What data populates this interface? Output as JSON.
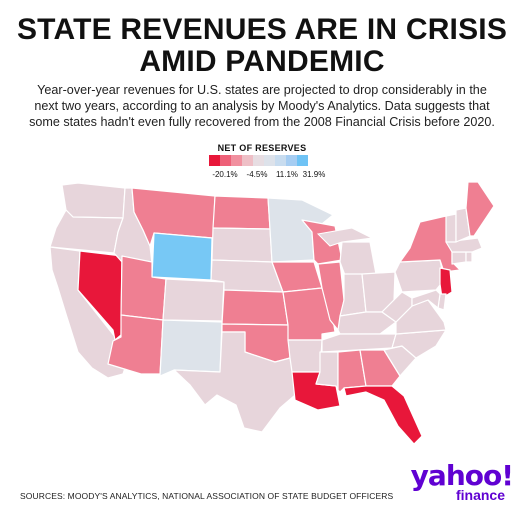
{
  "header": {
    "title_line1": "STATE REVENUES ARE IN CRISIS",
    "title_line2": "AMID PANDEMIC",
    "subtitle_line1": "Year-over-year revenues for U.S. states are projected to drop considerably in the",
    "subtitle_line2": "next two years, according to an analysis by Moody's Analytics. Data suggests that",
    "subtitle_line3": "some states hadn't even fully recovered from the 2008 Financial Crisis before 2020."
  },
  "legend": {
    "title": "NET OF RESERVES",
    "swatches": [
      "#e8173a",
      "#ee6078",
      "#f1909f",
      "#eebfc6",
      "#e7dde2",
      "#dde2ea",
      "#c8dcef",
      "#a6cdf2",
      "#6fc3f5"
    ],
    "labels": [
      "-20.1%",
      "-4.5%",
      "11.1%",
      "31.9%"
    ]
  },
  "colors": {
    "darkred": "#e8173a",
    "mid": "#ef7f92",
    "pink": "#e9a9b4",
    "light": "#e7d5db",
    "grey": "#dde3ea",
    "blue": "#77c8f5",
    "border": "#ffffff"
  },
  "states": [
    {
      "name": "Washington",
      "level": "light"
    },
    {
      "name": "Oregon",
      "level": "light"
    },
    {
      "name": "California",
      "level": "light"
    },
    {
      "name": "Nevada",
      "level": "darkred"
    },
    {
      "name": "Idaho",
      "level": "light"
    },
    {
      "name": "Montana",
      "level": "mid"
    },
    {
      "name": "Wyoming",
      "level": "blue"
    },
    {
      "name": "Utah",
      "level": "mid"
    },
    {
      "name": "Arizona",
      "level": "mid"
    },
    {
      "name": "Colorado",
      "level": "light"
    },
    {
      "name": "New Mexico",
      "level": "grey"
    },
    {
      "name": "North Dakota",
      "level": "mid"
    },
    {
      "name": "South Dakota",
      "level": "light"
    },
    {
      "name": "Nebraska",
      "level": "light"
    },
    {
      "name": "Kansas",
      "level": "mid"
    },
    {
      "name": "Oklahoma",
      "level": "mid"
    },
    {
      "name": "Texas",
      "level": "light"
    },
    {
      "name": "Minnesota",
      "level": "grey"
    },
    {
      "name": "Iowa",
      "level": "mid"
    },
    {
      "name": "Missouri",
      "level": "mid"
    },
    {
      "name": "Arkansas",
      "level": "light"
    },
    {
      "name": "Louisiana",
      "level": "darkred"
    },
    {
      "name": "Wisconsin",
      "level": "mid"
    },
    {
      "name": "Illinois",
      "level": "mid"
    },
    {
      "name": "Michigan",
      "level": "light"
    },
    {
      "name": "Indiana",
      "level": "light"
    },
    {
      "name": "Ohio",
      "level": "light"
    },
    {
      "name": "Kentucky",
      "level": "light"
    },
    {
      "name": "Tennessee",
      "level": "light"
    },
    {
      "name": "Mississippi",
      "level": "light"
    },
    {
      "name": "Alabama",
      "level": "mid"
    },
    {
      "name": "Georgia",
      "level": "mid"
    },
    {
      "name": "Florida",
      "level": "darkred"
    },
    {
      "name": "South Carolina",
      "level": "light"
    },
    {
      "name": "North Carolina",
      "level": "light"
    },
    {
      "name": "Virginia",
      "level": "light"
    },
    {
      "name": "West Virginia",
      "level": "light"
    },
    {
      "name": "Pennsylvania",
      "level": "light"
    },
    {
      "name": "New York",
      "level": "mid"
    },
    {
      "name": "New Jersey",
      "level": "darkred"
    },
    {
      "name": "Delaware",
      "level": "light"
    },
    {
      "name": "Maryland",
      "level": "light"
    },
    {
      "name": "Connecticut",
      "level": "light"
    },
    {
      "name": "Rhode Island",
      "level": "light"
    },
    {
      "name": "Massachusetts",
      "level": "light"
    },
    {
      "name": "Vermont",
      "level": "light"
    },
    {
      "name": "New Hampshire",
      "level": "light"
    },
    {
      "name": "Maine",
      "level": "mid"
    }
  ],
  "footer": {
    "sources": "SOURCES:  MOODY'S ANALYTICS, NATIONAL ASSOCIATION OF STATE BUDGET OFFICERS",
    "logo_main": "yahoo!",
    "logo_sub": "finance"
  }
}
